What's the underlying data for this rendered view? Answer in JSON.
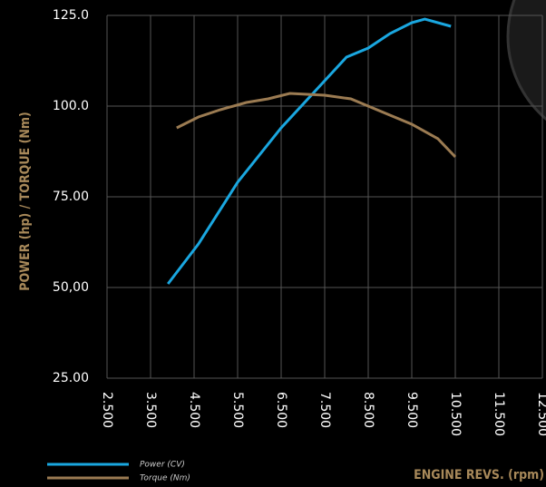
{
  "chart_data": {
    "type": "line",
    "y_label": "POWER (hp) / TORQUE (Nm)",
    "x_label": "ENGINE REVS. (rpm)",
    "xlim": [
      2500,
      12500
    ],
    "ylim": [
      25,
      125
    ],
    "xticks": [
      {
        "value": 2500,
        "label": "2.500"
      },
      {
        "value": 3500,
        "label": "3.500"
      },
      {
        "value": 4500,
        "label": "4.500"
      },
      {
        "value": 5500,
        "label": "5.500"
      },
      {
        "value": 6500,
        "label": "6.500"
      },
      {
        "value": 7500,
        "label": "7.500"
      },
      {
        "value": 8500,
        "label": "8.500"
      },
      {
        "value": 9500,
        "label": "9.500"
      },
      {
        "value": 10500,
        "label": "10.500"
      },
      {
        "value": 11500,
        "label": "11.500"
      },
      {
        "value": 12500,
        "label": "12.500"
      }
    ],
    "yticks": [
      {
        "value": 125,
        "label": "125.0"
      },
      {
        "value": 100,
        "label": "100.0"
      },
      {
        "value": 75,
        "label": "75.00"
      },
      {
        "value": 50,
        "label": "50,00"
      },
      {
        "value": 25,
        "label": "25.00"
      }
    ],
    "grid": true,
    "series": [
      {
        "name": "Power (CV)",
        "color": "#1aa7e0",
        "x": [
          3900,
          4600,
          5500,
          6500,
          7500,
          8000,
          8500,
          9000,
          9500,
          9800,
          10400
        ],
        "values": [
          51,
          62,
          79,
          94,
          107,
          113.5,
          116,
          120,
          123,
          124,
          122
        ]
      },
      {
        "name": "Torque (Nm)",
        "color": "#9b7b52",
        "x": [
          4100,
          4600,
          5100,
          5700,
          6200,
          6700,
          7500,
          8100,
          8500,
          9500,
          10100,
          10500
        ],
        "values": [
          94,
          97,
          99,
          101,
          102,
          103.5,
          103,
          102,
          100,
          95,
          91,
          86
        ]
      }
    ]
  }
}
